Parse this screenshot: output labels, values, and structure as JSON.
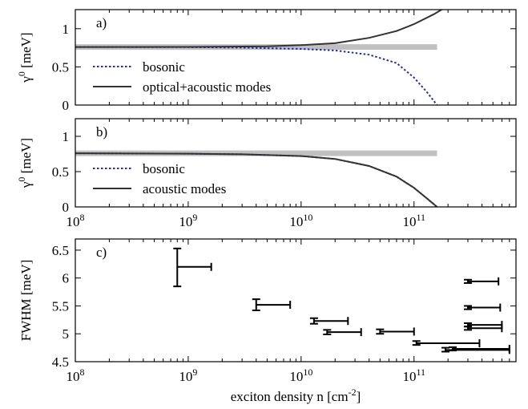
{
  "figure": {
    "x_tick_labels": [
      {
        "base": "10",
        "exp": "8"
      },
      {
        "base": "10",
        "exp": "9"
      },
      {
        "base": "10",
        "exp": "10"
      },
      {
        "base": "10",
        "exp": "11"
      }
    ],
    "x_axis_label": {
      "main": "exciton density n [cm",
      "exp": "-2",
      "tail": "]"
    }
  },
  "chart_data": [
    {
      "type": "line",
      "panel_label": "a)",
      "xscale": "log",
      "xlim": [
        100000000,
        800000000000
      ],
      "ylim": [
        0,
        1.25
      ],
      "ylabel": {
        "main": "γ",
        "exp": "0",
        "tail": " [meV]"
      },
      "ytick_labels": [
        "0",
        "0.5",
        "1"
      ],
      "yticks": [
        0,
        0.5,
        1
      ],
      "legend_position": "lower-left",
      "grid": false,
      "series": [
        {
          "name": "",
          "style": "thick-gray",
          "color": "#c0c0c0",
          "x_end": 160000000000,
          "x": [
            100000000,
            160000000000
          ],
          "y": [
            0.76,
            0.76
          ]
        },
        {
          "name": "bosonic",
          "style": "dotted",
          "color": "#2a2ab8",
          "x": [
            100000000,
            1000000000,
            3000000000,
            10000000000,
            20000000000,
            40000000000,
            70000000000,
            100000000000,
            130000000000,
            160000000000
          ],
          "y": [
            0.76,
            0.758,
            0.752,
            0.735,
            0.715,
            0.66,
            0.55,
            0.36,
            0.17,
            0.0
          ]
        },
        {
          "name": "optical+acoustic modes",
          "style": "solid",
          "color": "#333333",
          "x": [
            100000000,
            1000000000,
            5000000000,
            10000000000,
            20000000000,
            40000000000,
            70000000000,
            100000000000,
            150000000000,
            200000000000
          ],
          "y": [
            0.76,
            0.762,
            0.77,
            0.785,
            0.81,
            0.88,
            0.97,
            1.06,
            1.19,
            1.3
          ]
        }
      ]
    },
    {
      "type": "line",
      "panel_label": "b)",
      "xscale": "log",
      "xlim": [
        100000000,
        800000000000
      ],
      "ylim": [
        0,
        1.25
      ],
      "ylabel": {
        "main": "γ",
        "exp": "0",
        "tail": " [meV]"
      },
      "ytick_labels": [
        "0",
        "0.5",
        "1"
      ],
      "yticks": [
        0,
        0.5,
        1
      ],
      "legend_position": "lower-left",
      "grid": false,
      "series": [
        {
          "name": "",
          "style": "thick-gray",
          "color": "#c0c0c0",
          "x": [
            100000000,
            160000000000
          ],
          "y": [
            0.76,
            0.76
          ]
        },
        {
          "name": "bosonic",
          "style": "dotted",
          "color": "#2a2ab8",
          "x": [
            100000000,
            1000000000,
            3000000000,
            10000000000,
            20000000000,
            40000000000,
            70000000000,
            100000000000,
            130000000000,
            160000000000
          ],
          "y": [
            0.76,
            0.755,
            0.745,
            0.72,
            0.68,
            0.58,
            0.43,
            0.27,
            0.12,
            0.0
          ]
        },
        {
          "name": "acoustic modes",
          "style": "solid",
          "color": "#333333",
          "x": [
            100000000,
            1000000000,
            3000000000,
            10000000000,
            20000000000,
            40000000000,
            70000000000,
            100000000000,
            130000000000,
            160000000000
          ],
          "y": [
            0.76,
            0.755,
            0.745,
            0.72,
            0.68,
            0.58,
            0.43,
            0.27,
            0.12,
            0.0
          ]
        }
      ]
    },
    {
      "type": "scatter",
      "panel_label": "c)",
      "xscale": "log",
      "xlim": [
        100000000,
        800000000000
      ],
      "ylim": [
        4.5,
        6.7
      ],
      "ylabel": {
        "main": "FWHM [meV]",
        "exp": "",
        "tail": ""
      },
      "ytick_labels": [
        "4.5",
        "5",
        "5.5",
        "6",
        "6.5"
      ],
      "yticks": [
        4.5,
        5,
        5.5,
        6,
        6.5
      ],
      "grid": false,
      "points": [
        {
          "x": 800000000,
          "x_hi": 1600000000,
          "y": 6.2,
          "y_lo": 5.85,
          "y_hi": 6.53
        },
        {
          "x": 4000000000,
          "x_hi": 8000000000,
          "y": 5.52,
          "y_lo": 5.42,
          "y_hi": 5.62
        },
        {
          "x": 13000000000,
          "x_hi": 26000000000,
          "y": 5.23,
          "y_lo": 5.18,
          "y_hi": 5.28
        },
        {
          "x": 17000000000,
          "x_hi": 34000000000,
          "y": 5.03,
          "y_lo": 4.99,
          "y_hi": 5.07
        },
        {
          "x": 50000000000,
          "x_hi": 100000000000,
          "y": 5.04,
          "y_lo": 5.0,
          "y_hi": 5.08
        },
        {
          "x": 105000000000,
          "x_hi": 380000000000,
          "y": 4.83,
          "y_lo": 4.8,
          "y_hi": 4.87
        },
        {
          "x": 190000000000,
          "x_hi": 700000000000,
          "y": 4.71,
          "y_lo": 4.68,
          "y_hi": 4.75
        },
        {
          "x": 220000000000,
          "x_hi": 700000000000,
          "y": 4.73,
          "y_lo": 4.7,
          "y_hi": 4.76
        },
        {
          "x": 300000000000,
          "x_hi": 560000000000,
          "y": 5.94,
          "y_lo": 5.91,
          "y_hi": 5.97
        },
        {
          "x": 300000000000,
          "x_hi": 580000000000,
          "y": 5.47,
          "y_lo": 5.44,
          "y_hi": 5.5
        },
        {
          "x": 300000000000,
          "x_hi": 600000000000,
          "y": 5.16,
          "y_lo": 5.13,
          "y_hi": 5.19
        },
        {
          "x": 300000000000,
          "x_hi": 600000000000,
          "y": 5.1,
          "y_lo": 5.07,
          "y_hi": 5.13
        }
      ]
    }
  ]
}
